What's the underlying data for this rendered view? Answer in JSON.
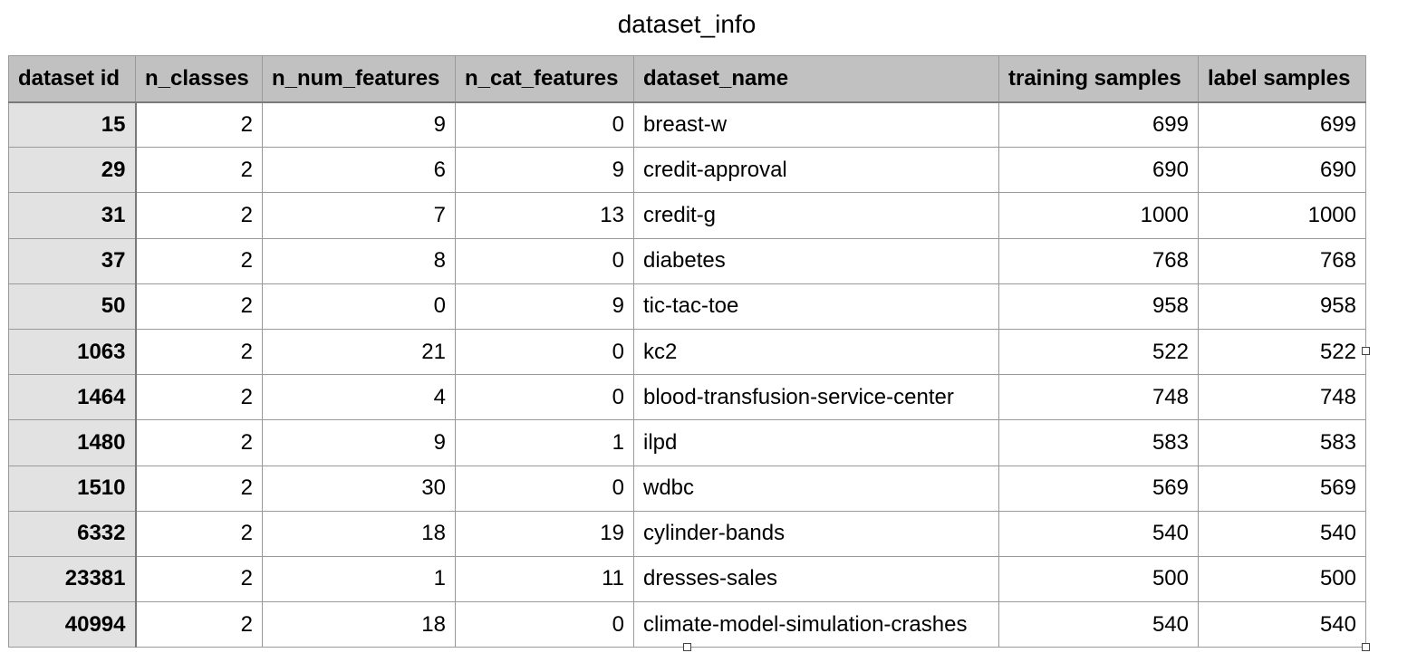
{
  "title": "dataset_info",
  "columns": [
    "dataset id",
    "n_classes",
    "n_num_features",
    "n_cat_features",
    "dataset_name",
    "training samples",
    "label samples"
  ],
  "rows": [
    [
      "15",
      "2",
      "9",
      "0",
      "breast-w",
      "699",
      "699"
    ],
    [
      "29",
      "2",
      "6",
      "9",
      "credit-approval",
      "690",
      "690"
    ],
    [
      "31",
      "2",
      "7",
      "13",
      "credit-g",
      "1000",
      "1000"
    ],
    [
      "37",
      "2",
      "8",
      "0",
      "diabetes",
      "768",
      "768"
    ],
    [
      "50",
      "2",
      "0",
      "9",
      "tic-tac-toe",
      "958",
      "958"
    ],
    [
      "1063",
      "2",
      "21",
      "0",
      "kc2",
      "522",
      "522"
    ],
    [
      "1464",
      "2",
      "4",
      "0",
      "blood-transfusion-service-center",
      "748",
      "748"
    ],
    [
      "1480",
      "2",
      "9",
      "1",
      "ilpd",
      "583",
      "583"
    ],
    [
      "1510",
      "2",
      "30",
      "0",
      "wdbc",
      "569",
      "569"
    ],
    [
      "6332",
      "2",
      "18",
      "19",
      "cylinder-bands",
      "540",
      "540"
    ],
    [
      "23381",
      "2",
      "1",
      "11",
      "dresses-sales",
      "500",
      "500"
    ],
    [
      "40994",
      "2",
      "18",
      "0",
      "climate-model-simulation-crashes",
      "540",
      "540"
    ]
  ],
  "colors": {
    "header_background": "#c0c1c0",
    "id_column_background": "#e2e2e2",
    "grid_lines": "#9a9a9a"
  }
}
